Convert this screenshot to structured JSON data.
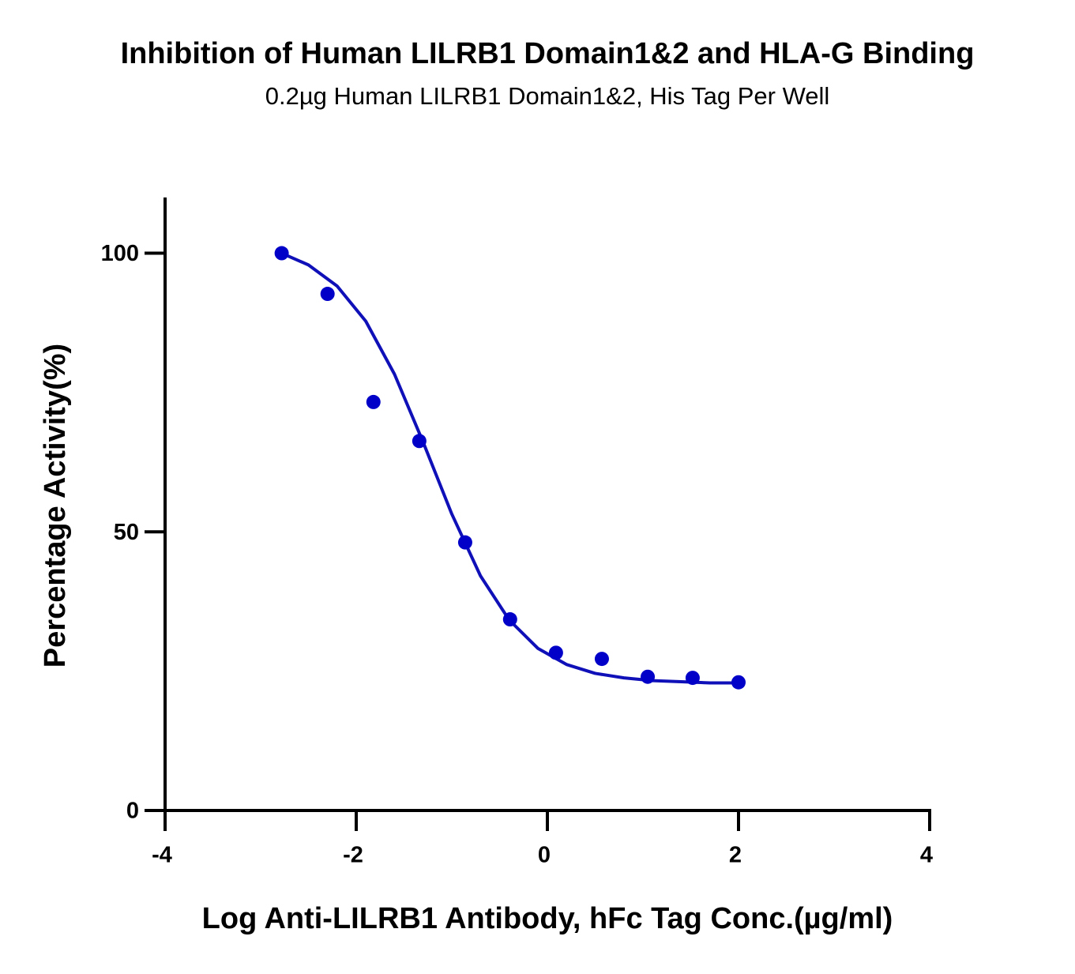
{
  "chart_data": {
    "type": "scatter",
    "title": "Inhibition of Human LILRB1 Domain1&2 and HLA-G Binding",
    "subtitle": "0.2µg Human LILRB1 Domain1&2, His Tag Per Well",
    "x_label": "Log Anti-LILRB1 Antibody, hFc Tag Conc.(µg/ml)",
    "y_label": "Percentage Activity(%)",
    "color": "#0000c8",
    "x": [
      -2.78,
      -2.3,
      -1.82,
      -1.34,
      -0.86,
      -0.39,
      0.09,
      0.57,
      1.05,
      1.52,
      2.0
    ],
    "values": [
      100,
      92.7,
      73.3,
      66.3,
      48.1,
      34.3,
      28.3,
      27.2,
      24.0,
      23.8,
      23.0
    ],
    "curve": {
      "x": [
        -2.78,
        -2.5,
        -2.2,
        -1.9,
        -1.6,
        -1.3,
        -1.0,
        -0.7,
        -0.4,
        -0.1,
        0.2,
        0.5,
        0.8,
        1.1,
        1.4,
        1.7,
        2.0
      ],
      "values": [
        100.0,
        97.9,
        94.1,
        87.8,
        78.3,
        66.1,
        53.2,
        42.1,
        34.2,
        29.1,
        26.2,
        24.6,
        23.8,
        23.3,
        23.1,
        22.9,
        22.9
      ],
      "color": "#1010b8"
    },
    "xlim": [
      -4,
      4
    ],
    "xticks": [
      -4,
      -2,
      0,
      2,
      4
    ],
    "ylim": [
      0,
      110
    ],
    "yticks": [
      0,
      50,
      100
    ]
  }
}
